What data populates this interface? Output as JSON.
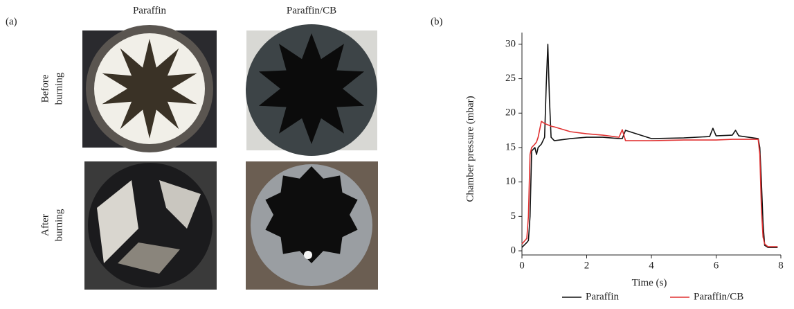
{
  "panel_a": {
    "label": "(a)",
    "columns": [
      "Paraffin",
      "Paraffin/CB"
    ],
    "rows": [
      [
        "Before",
        "burning"
      ],
      [
        "After",
        "burning"
      ]
    ]
  },
  "panel_b": {
    "label": "(b)"
  },
  "chart_data": {
    "type": "line",
    "xlabel": "Time (s)",
    "ylabel": "Chamber pressure (mbar)",
    "x": [
      0,
      0.15,
      0.2,
      0.25,
      0.3,
      0.4,
      0.45,
      0.5,
      0.6,
      0.7,
      0.75,
      0.8,
      0.85,
      0.9,
      1,
      1.5,
      2,
      2.5,
      3,
      3.1,
      3.2,
      4,
      5,
      5.8,
      5.9,
      6,
      6.5,
      6.6,
      6.7,
      7.3,
      7.35,
      7.4,
      7.45,
      7.5,
      7.6,
      7.9
    ],
    "series": [
      {
        "name": "Paraffin",
        "color": "#111111",
        "values": [
          0.5,
          1.2,
          1.5,
          5,
          14.5,
          15,
          14,
          15,
          15.5,
          16.5,
          24,
          30,
          22,
          16.5,
          16,
          16.3,
          16.5,
          16.5,
          16.3,
          16.3,
          17.5,
          16.3,
          16.4,
          16.6,
          17.8,
          16.7,
          16.8,
          17.5,
          16.7,
          16.3,
          15,
          10,
          4,
          0.8,
          0.5,
          0.5
        ]
      },
      {
        "name": "Paraffin/CB",
        "color": "#e03030",
        "values": [
          1,
          1.8,
          5,
          14,
          15,
          15.5,
          15.8,
          16.5,
          18.8,
          18.5,
          18.4,
          18.3,
          18.2,
          18.1,
          18,
          17.3,
          17,
          16.8,
          16.5,
          17.6,
          16,
          16,
          16.1,
          16.1,
          16.1,
          16.1,
          16.2,
          16.2,
          16.2,
          16.2,
          14,
          6,
          2,
          1,
          0.6,
          0.6
        ]
      }
    ],
    "xlim": [
      0,
      8
    ],
    "xticks": [
      0,
      2,
      4,
      6,
      8
    ],
    "ylim": [
      -0.6,
      31.7
    ],
    "yticks": [
      0,
      5,
      10,
      15,
      20,
      25,
      30
    ],
    "grid": false,
    "legend": "bottom"
  }
}
